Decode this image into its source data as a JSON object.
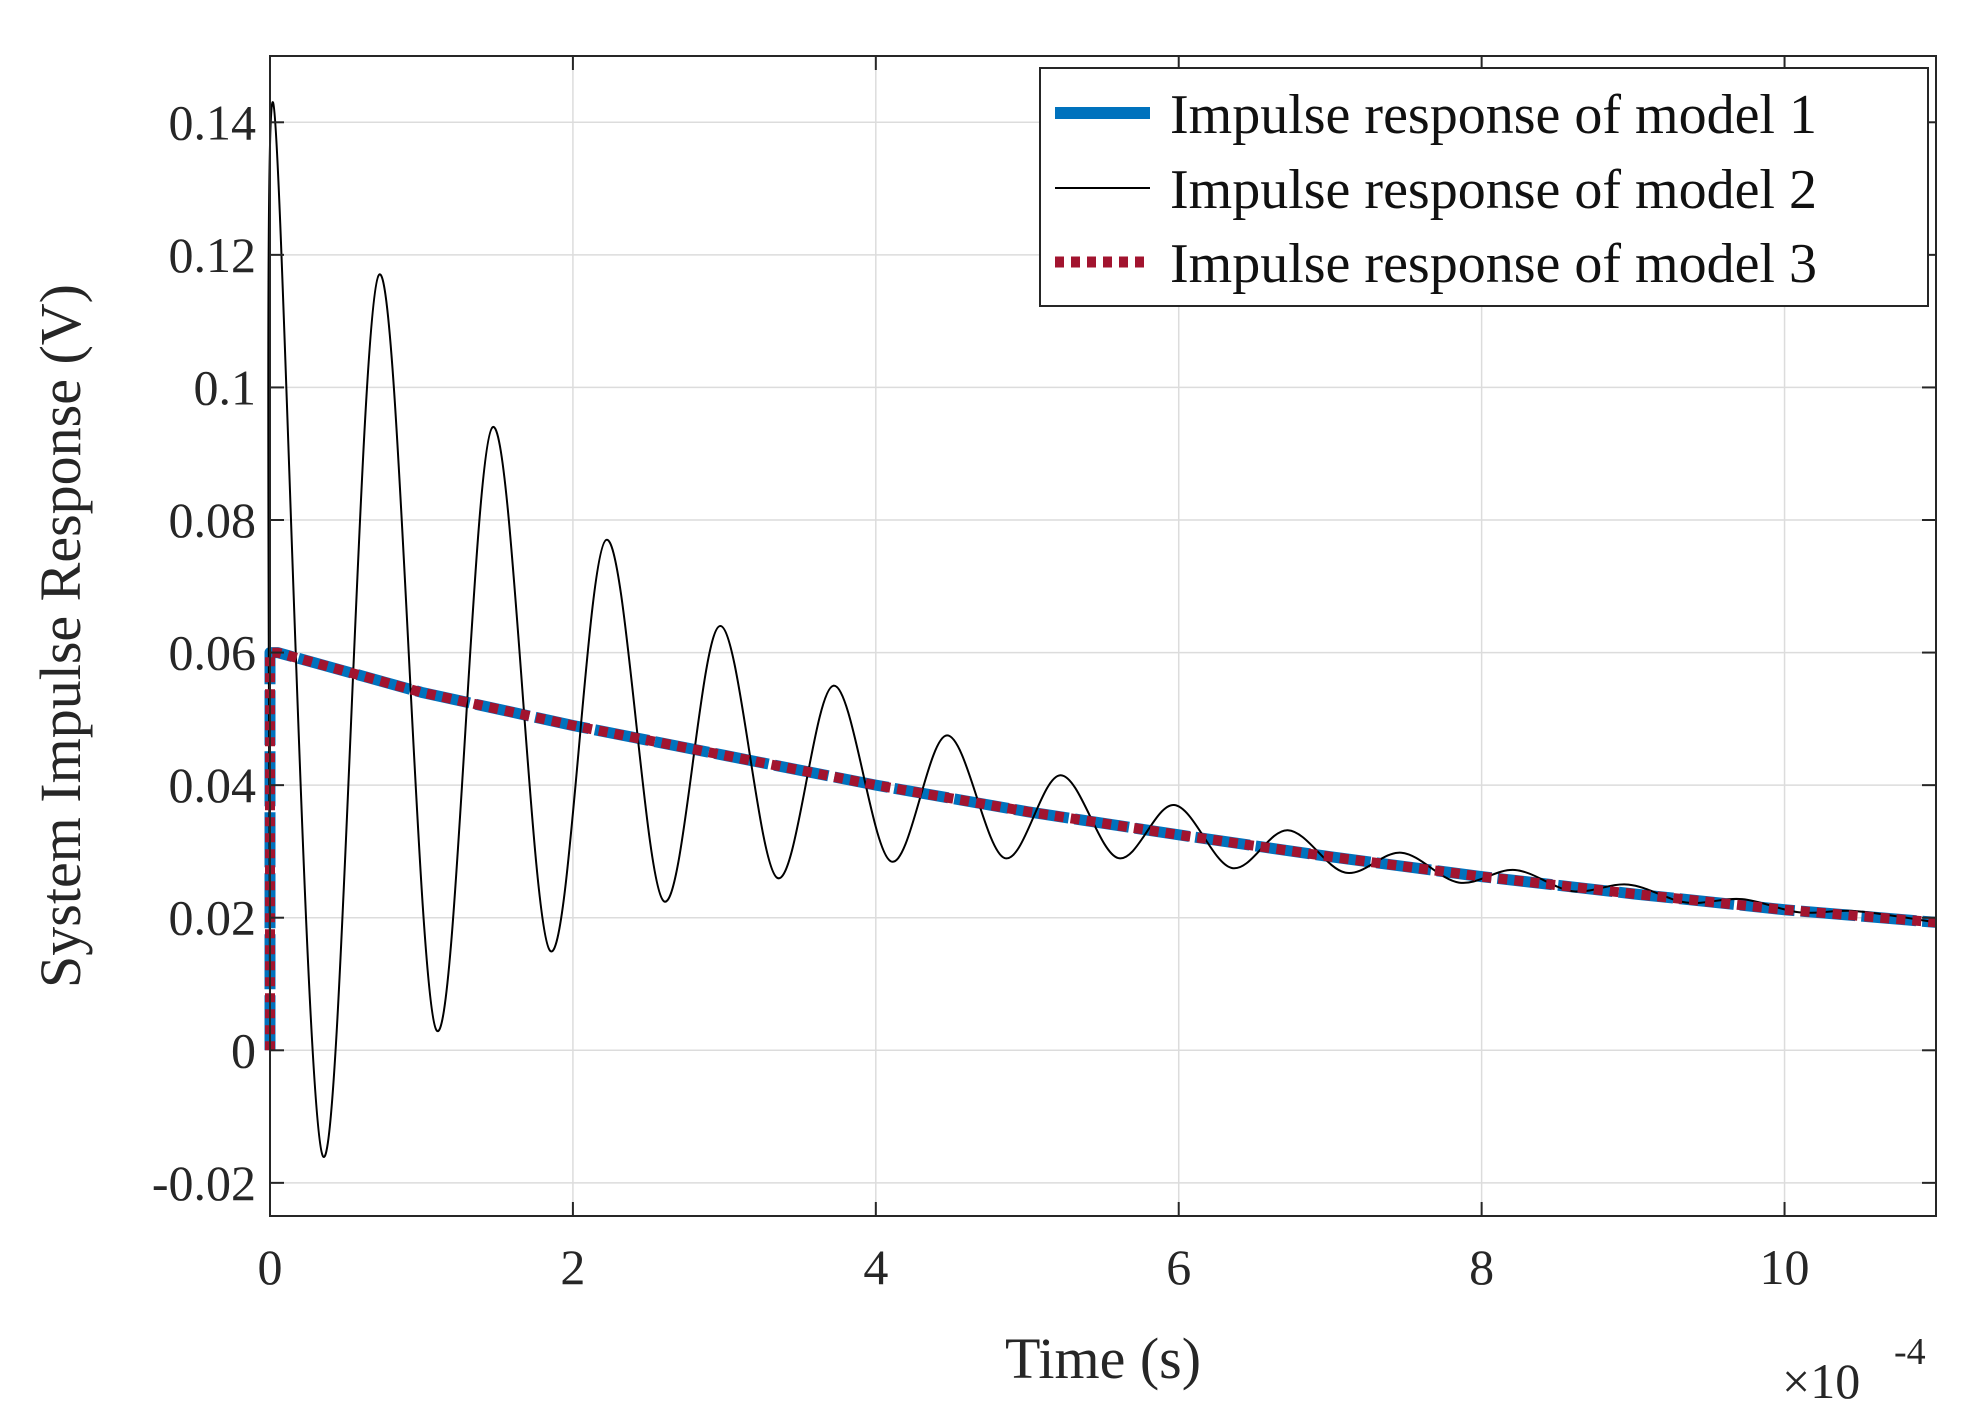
{
  "chart_data": {
    "type": "line",
    "title": "",
    "xlabel": "Time (s)",
    "ylabel": "System Impulse Response (V)",
    "x_multiplier": {
      "base": "×10",
      "exponent": "-4"
    },
    "xlim": [
      0,
      11
    ],
    "ylim": [
      -0.025,
      0.15
    ],
    "x_ticks": [
      0,
      2,
      4,
      6,
      8,
      10
    ],
    "x_tick_labels": [
      "0",
      "2",
      "4",
      "6",
      "8",
      "10"
    ],
    "y_ticks": [
      -0.02,
      0,
      0.02,
      0.04,
      0.06,
      0.08,
      0.1,
      0.12,
      0.14
    ],
    "y_tick_labels": [
      "-0.02",
      "0",
      "0.02",
      "0.04",
      "0.06",
      "0.08",
      "0.1",
      "0.12",
      "0.14"
    ],
    "grid": true,
    "legend_position": "top-right",
    "series": [
      {
        "name": "Impulse response of model 1",
        "style": "thick-dashed",
        "color": "#0072BD",
        "x": [
          0,
          0,
          0.05,
          1,
          2,
          3,
          4,
          5,
          6,
          7,
          8,
          9,
          10,
          11
        ],
        "y": [
          0,
          0.06,
          0.06,
          0.054,
          0.049,
          0.0445,
          0.04,
          0.036,
          0.0325,
          0.0292,
          0.0262,
          0.0236,
          0.0212,
          0.0193
        ]
      },
      {
        "name": "Impulse response of model 2",
        "style": "thin-solid",
        "color": "#000000",
        "x": [
          0,
          0.02,
          0.35,
          0.72,
          1.1,
          1.47,
          1.85,
          2.22,
          2.6,
          2.97,
          3.35,
          3.72,
          4.1,
          4.47,
          4.85,
          5.22,
          5.6,
          5.97,
          6.35,
          6.72,
          7.1,
          7.47,
          7.85,
          8.22,
          8.6,
          8.97,
          9.35,
          9.72,
          10.1,
          10.47,
          11
        ],
        "y": [
          0,
          0.143,
          -0.016,
          0.117,
          0.003,
          0.094,
          0.015,
          0.077,
          0.0225,
          0.064,
          0.026,
          0.055,
          0.0285,
          0.0475,
          0.029,
          0.0415,
          0.029,
          0.037,
          0.0275,
          0.0332,
          0.0268,
          0.0298,
          0.0253,
          0.0272,
          0.024,
          0.025,
          0.0223,
          0.0228,
          0.0208,
          0.021,
          0.0193
        ]
      },
      {
        "name": "Impulse response of model 3",
        "style": "thick-dotted",
        "color": "#A2142F",
        "x": [
          0,
          0,
          0.05,
          1,
          2,
          3,
          4,
          5,
          6,
          7,
          8,
          9,
          10,
          11
        ],
        "y": [
          0,
          0.06,
          0.06,
          0.054,
          0.049,
          0.0445,
          0.04,
          0.036,
          0.0325,
          0.0292,
          0.0262,
          0.0236,
          0.0212,
          0.0193
        ]
      }
    ]
  }
}
